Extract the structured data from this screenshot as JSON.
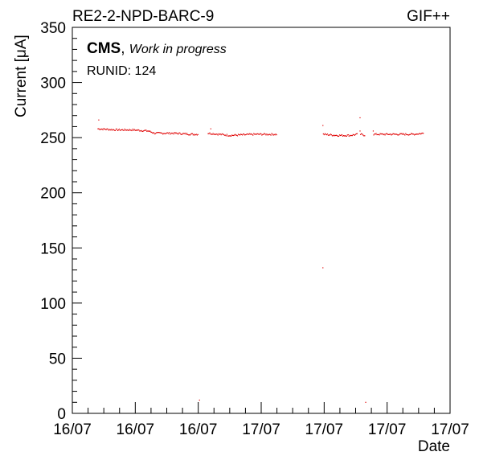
{
  "header": {
    "left_title": "RE2-2-NPD-BARC-9",
    "right_title": "GIF++"
  },
  "annotation": {
    "experiment": "CMS",
    "status": "Work in progress",
    "runid": "RUNID: 124"
  },
  "colors": {
    "data": "#e00000",
    "axes": "#000000"
  },
  "chart_data": {
    "type": "scatter",
    "ylabel": "Current [μA]",
    "xlabel": "Date",
    "ylim": [
      0,
      350
    ],
    "yticks": [
      0,
      50,
      100,
      150,
      200,
      250,
      300,
      350
    ],
    "xtick_labels": [
      "16/07",
      "16/07",
      "16/07",
      "17/07",
      "17/07",
      "17/07",
      "17/07"
    ],
    "xlim": [
      0,
      6
    ],
    "segments": [
      {
        "x": [
          0.4,
          0.7,
          0.95,
          1.2,
          1.3
        ],
        "y": [
          258,
          257,
          257,
          256,
          254
        ]
      },
      {
        "x": [
          1.3,
          1.6,
          1.9,
          2.0
        ],
        "y": [
          254,
          254,
          253,
          253
        ]
      },
      {
        "x": [
          2.15,
          2.5,
          2.9,
          3.25
        ],
        "y": [
          254,
          252,
          253,
          253
        ]
      },
      {
        "x": [
          3.98,
          4.2,
          4.4,
          4.53
        ],
        "y": [
          253,
          252,
          252,
          253
        ]
      },
      {
        "x": [
          4.57,
          4.65
        ],
        "y": [
          253,
          252
        ]
      },
      {
        "x": [
          4.78,
          5.1,
          5.4,
          5.58
        ],
        "y": [
          253,
          253,
          253,
          254
        ]
      }
    ],
    "outliers": [
      {
        "x": 0.42,
        "y": 266
      },
      {
        "x": 2.02,
        "y": 12
      },
      {
        "x": 2.2,
        "y": 258
      },
      {
        "x": 3.98,
        "y": 132
      },
      {
        "x": 3.98,
        "y": 261
      },
      {
        "x": 4.57,
        "y": 268
      },
      {
        "x": 4.57,
        "y": 256
      },
      {
        "x": 4.66,
        "y": 10
      },
      {
        "x": 4.78,
        "y": 256
      }
    ]
  }
}
